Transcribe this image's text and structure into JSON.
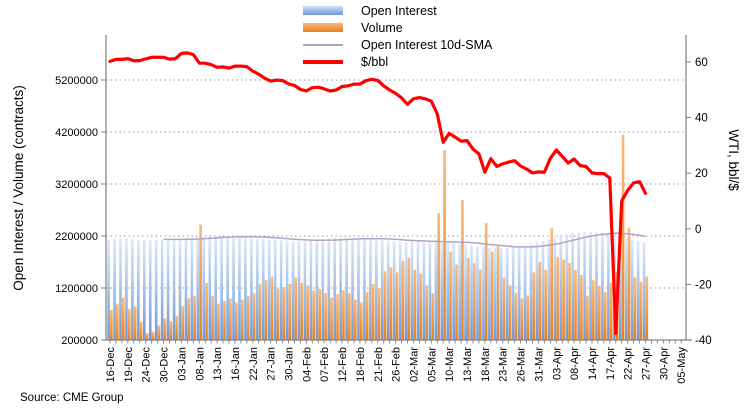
{
  "source": "Source: CME Group",
  "legend": {
    "items": [
      {
        "label": "Open Interest",
        "swatch": "blue-bar"
      },
      {
        "label": "Volume",
        "swatch": "orange-bar"
      },
      {
        "label": "Open Interest 10d-SMA",
        "swatch": "lavender-line"
      },
      {
        "label": "$/bbl",
        "swatch": "red-line"
      }
    ]
  },
  "left_axis": {
    "title": "Open Interest / Volume (contracts)",
    "tick_values": [
      5200000,
      4200000,
      3200000,
      2200000,
      1200000,
      200000
    ]
  },
  "right_axis": {
    "title": "WTI, bbl/$",
    "tick_values": [
      60,
      40,
      20,
      0,
      -20,
      -40
    ]
  },
  "x_axis": {
    "labels": [
      "16-Dec",
      "19-Dec",
      "24-Dec",
      "30-Dec",
      "03-Jan",
      "08-Jan",
      "13-Jan",
      "16-Jan",
      "22-Jan",
      "27-Jan",
      "30-Jan",
      "04-Feb",
      "07-Feb",
      "12-Feb",
      "18-Feb",
      "21-Feb",
      "26-Feb",
      "02-Mar",
      "05-Mar",
      "10-Mar",
      "13-Mar",
      "18-Mar",
      "23-Mar",
      "26-Mar",
      "31-Mar",
      "03-Apr",
      "08-Apr",
      "14-Apr",
      "17-Apr",
      "22-Apr",
      "27-Apr",
      "30-Apr",
      "05-May"
    ],
    "label_stride_days": 3
  },
  "colors": {
    "bar_blue_top": "#cfe0f5",
    "bar_blue_bottom": "#6d98d9",
    "bar_orange_top": "#f8bb7c",
    "bar_orange_bottom": "#e8801f",
    "sma_line": "#b3a2c7",
    "price_line": "#fe0000",
    "axis": "#808080",
    "grid": "#9a9a9a",
    "text": "#000000"
  },
  "chart_data": {
    "type": "bar",
    "subtype": "grouped bars + two overlay lines (dual axis combo)",
    "title": "",
    "xlabel": "",
    "ylabel_left": "Open Interest / Volume (contracts)",
    "ylabel_right": "WTI, bbl/$",
    "ylim_left": [
      200000,
      6100000
    ],
    "ylim_right": [
      -40,
      70
    ],
    "grid": "dotted horizontal lines at left-axis ticks",
    "legend_position": "top-center",
    "values_unit": "million contracts",
    "categories": [
      "16-Dec",
      "17-Dec",
      "18-Dec",
      "19-Dec",
      "20-Dec",
      "23-Dec",
      "24-Dec",
      "26-Dec",
      "27-Dec",
      "30-Dec",
      "31-Dec",
      "02-Jan",
      "03-Jan",
      "06-Jan",
      "07-Jan",
      "08-Jan",
      "09-Jan",
      "10-Jan",
      "13-Jan",
      "14-Jan",
      "15-Jan",
      "16-Jan",
      "17-Jan",
      "21-Jan",
      "22-Jan",
      "23-Jan",
      "24-Jan",
      "27-Jan",
      "28-Jan",
      "29-Jan",
      "30-Jan",
      "31-Jan",
      "03-Feb",
      "04-Feb",
      "05-Feb",
      "06-Feb",
      "07-Feb",
      "10-Feb",
      "11-Feb",
      "12-Feb",
      "13-Feb",
      "14-Feb",
      "18-Feb",
      "19-Feb",
      "20-Feb",
      "21-Feb",
      "24-Feb",
      "25-Feb",
      "26-Feb",
      "27-Feb",
      "28-Feb",
      "02-Mar",
      "03-Mar",
      "04-Mar",
      "05-Mar",
      "06-Mar",
      "09-Mar",
      "10-Mar",
      "11-Mar",
      "12-Mar",
      "13-Mar",
      "16-Mar",
      "17-Mar",
      "18-Mar",
      "19-Mar",
      "20-Mar",
      "23-Mar",
      "24-Mar",
      "25-Mar",
      "26-Mar",
      "27-Mar",
      "30-Mar",
      "31-Mar",
      "01-Apr",
      "02-Apr",
      "03-Apr",
      "06-Apr",
      "07-Apr",
      "08-Apr",
      "09-Apr",
      "13-Apr",
      "14-Apr",
      "15-Apr",
      "16-Apr",
      "17-Apr",
      "20-Apr",
      "21-Apr",
      "22-Apr",
      "23-Apr",
      "24-Apr",
      "27-Apr"
    ],
    "series": [
      {
        "name": "Open Interest",
        "type": "bar",
        "axis": "left",
        "values": [
          2.13,
          2.14,
          2.15,
          2.15,
          2.14,
          2.13,
          2.12,
          2.12,
          2.13,
          2.13,
          2.13,
          2.14,
          2.15,
          2.16,
          2.17,
          2.18,
          2.19,
          2.19,
          2.2,
          2.2,
          2.2,
          2.19,
          2.18,
          2.17,
          2.16,
          2.15,
          2.14,
          2.13,
          2.13,
          2.12,
          2.11,
          2.1,
          2.1,
          2.11,
          2.12,
          2.13,
          2.14,
          2.15,
          2.16,
          2.17,
          2.17,
          2.16,
          2.15,
          2.14,
          2.13,
          2.12,
          2.12,
          2.11,
          2.1,
          2.09,
          2.08,
          2.09,
          2.1,
          2.1,
          2.09,
          2.08,
          2.06,
          2.08,
          2.07,
          2.05,
          2.04,
          2.02,
          2.0,
          1.98,
          1.97,
          1.98,
          1.96,
          1.97,
          1.98,
          2.0,
          2.02,
          2.05,
          2.08,
          2.1,
          2.13,
          2.16,
          2.2,
          2.24,
          2.26,
          2.27,
          2.28,
          2.28,
          2.27,
          2.26,
          2.25,
          2.24,
          2.18,
          2.14,
          2.12,
          2.1,
          2.08
        ]
      },
      {
        "name": "Volume",
        "type": "bar",
        "axis": "left",
        "values": [
          0.78,
          0.9,
          1.02,
          0.8,
          0.85,
          0.55,
          0.33,
          0.36,
          0.48,
          0.62,
          0.56,
          0.66,
          0.85,
          1.0,
          1.05,
          2.42,
          1.3,
          1.05,
          0.9,
          0.95,
          1.0,
          0.92,
          0.98,
          1.05,
          1.1,
          1.28,
          1.35,
          1.42,
          1.18,
          1.22,
          1.28,
          1.4,
          1.3,
          1.25,
          1.15,
          1.18,
          1.1,
          1.02,
          1.08,
          1.15,
          1.1,
          0.98,
          0.92,
          1.12,
          1.28,
          1.2,
          1.52,
          1.6,
          1.5,
          1.72,
          1.78,
          1.55,
          1.48,
          1.25,
          1.1,
          2.64,
          3.85,
          1.9,
          1.65,
          2.89,
          1.78,
          1.68,
          1.55,
          2.45,
          1.9,
          2.0,
          1.4,
          1.25,
          1.1,
          1.0,
          1.05,
          1.5,
          1.7,
          1.55,
          2.35,
          1.8,
          1.75,
          1.68,
          1.55,
          1.45,
          1.05,
          1.35,
          1.25,
          1.12,
          1.3,
          1.52,
          4.15,
          2.36,
          1.4,
          1.32,
          1.42
        ]
      },
      {
        "name": "Open Interest 10d-SMA",
        "type": "line",
        "axis": "left",
        "derived_from": "Open Interest",
        "window": 10
      },
      {
        "name": "$/bbl",
        "type": "line",
        "axis": "right",
        "values": [
          60.21,
          60.94,
          60.93,
          61.22,
          60.44,
          60.52,
          61.11,
          61.68,
          61.72,
          61.68,
          61.06,
          61.18,
          63.05,
          63.27,
          62.7,
          59.61,
          59.56,
          59.04,
          58.08,
          58.23,
          57.81,
          58.52,
          58.54,
          58.34,
          56.74,
          55.59,
          54.19,
          53.14,
          53.48,
          53.33,
          52.14,
          51.56,
          50.11,
          49.61,
          50.75,
          50.95,
          50.32,
          49.57,
          49.94,
          51.17,
          51.42,
          52.05,
          52.05,
          53.29,
          53.78,
          53.38,
          51.43,
          49.9,
          48.73,
          47.09,
          44.76,
          46.75,
          47.18,
          46.78,
          45.9,
          41.28,
          31.13,
          34.36,
          32.98,
          31.5,
          31.73,
          28.7,
          26.95,
          20.37,
          25.22,
          22.43,
          23.36,
          24.01,
          24.49,
          22.6,
          21.51,
          20.09,
          20.48,
          20.31,
          25.32,
          28.34,
          26.08,
          23.63,
          25.09,
          22.76,
          22.41,
          20.11,
          19.87,
          19.87,
          18.27,
          -37.63,
          10.01,
          13.78,
          16.5,
          16.94,
          12.78
        ]
      }
    ]
  }
}
